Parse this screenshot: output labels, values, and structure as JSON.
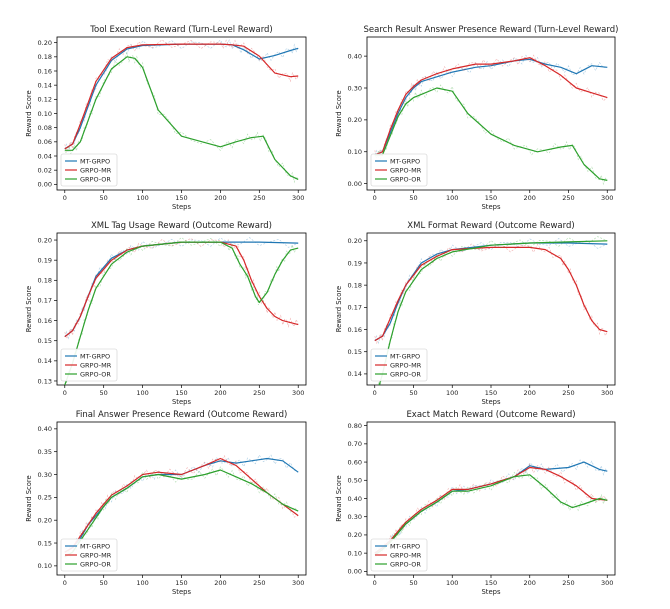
{
  "colors": {
    "MT-GRPO": "#1f77b4",
    "GRPO-MR": "#d62728",
    "GRPO-OR": "#2ca02c"
  },
  "chart_data": [
    {
      "type": "line",
      "title": "Tool Execution Reward (Turn-Level Reward)",
      "xlabel": "Steps",
      "ylabel": "Reward Score",
      "xlim": [
        -10,
        310
      ],
      "ylim": [
        -0.008,
        0.208
      ],
      "xticks": [
        0,
        50,
        100,
        150,
        200,
        250,
        300
      ],
      "yticks": [
        0.0,
        0.02,
        0.04,
        0.06,
        0.08,
        0.1,
        0.12,
        0.14,
        0.16,
        0.18,
        0.2
      ],
      "legend": "lower-left",
      "series": [
        {
          "name": "MT-GRPO",
          "x": [
            0,
            10,
            20,
            30,
            40,
            60,
            80,
            100,
            150,
            200,
            215,
            230,
            250,
            270,
            290,
            300
          ],
          "values": [
            0.05,
            0.057,
            0.08,
            0.11,
            0.14,
            0.175,
            0.191,
            0.196,
            0.198,
            0.198,
            0.197,
            0.19,
            0.177,
            0.182,
            0.189,
            0.192
          ]
        },
        {
          "name": "GRPO-MR",
          "x": [
            0,
            10,
            20,
            30,
            40,
            60,
            80,
            100,
            150,
            200,
            215,
            230,
            250,
            270,
            290,
            300
          ],
          "values": [
            0.05,
            0.057,
            0.085,
            0.115,
            0.145,
            0.178,
            0.193,
            0.197,
            0.198,
            0.198,
            0.197,
            0.195,
            0.181,
            0.157,
            0.152,
            0.153
          ]
        },
        {
          "name": "GRPO-OR",
          "x": [
            0,
            10,
            20,
            30,
            40,
            60,
            80,
            90,
            100,
            120,
            150,
            200,
            220,
            240,
            255,
            270,
            290,
            300
          ],
          "values": [
            0.048,
            0.048,
            0.06,
            0.09,
            0.12,
            0.163,
            0.18,
            0.178,
            0.165,
            0.105,
            0.068,
            0.053,
            0.06,
            0.066,
            0.068,
            0.035,
            0.012,
            0.007
          ]
        }
      ]
    },
    {
      "type": "line",
      "title": "Search Result Answer Presence Reward (Turn-Level Reward)",
      "xlabel": "Steps",
      "ylabel": "Reward Score",
      "xlim": [
        -10,
        310
      ],
      "ylim": [
        -0.02,
        0.46
      ],
      "xticks": [
        0,
        50,
        100,
        150,
        200,
        250,
        300
      ],
      "yticks": [
        0.0,
        0.1,
        0.2,
        0.3,
        0.4
      ],
      "legend": "lower-left",
      "series": [
        {
          "name": "MT-GRPO",
          "x": [
            0,
            10,
            20,
            30,
            40,
            50,
            60,
            80,
            100,
            130,
            150,
            180,
            200,
            220,
            240,
            260,
            280,
            300
          ],
          "values": [
            0.09,
            0.1,
            0.16,
            0.22,
            0.27,
            0.3,
            0.32,
            0.335,
            0.35,
            0.365,
            0.37,
            0.385,
            0.39,
            0.375,
            0.365,
            0.345,
            0.37,
            0.365
          ]
        },
        {
          "name": "GRPO-MR",
          "x": [
            0,
            10,
            20,
            30,
            40,
            50,
            60,
            80,
            100,
            130,
            150,
            180,
            200,
            220,
            240,
            260,
            280,
            300
          ],
          "values": [
            0.09,
            0.1,
            0.17,
            0.23,
            0.28,
            0.305,
            0.325,
            0.345,
            0.36,
            0.375,
            0.375,
            0.385,
            0.395,
            0.37,
            0.34,
            0.3,
            0.285,
            0.27
          ]
        },
        {
          "name": "GRPO-OR",
          "x": [
            0,
            10,
            20,
            30,
            40,
            50,
            60,
            80,
            100,
            120,
            150,
            180,
            210,
            240,
            255,
            270,
            290,
            300
          ],
          "values": [
            0.09,
            0.09,
            0.15,
            0.21,
            0.25,
            0.27,
            0.28,
            0.3,
            0.29,
            0.22,
            0.155,
            0.12,
            0.1,
            0.115,
            0.12,
            0.06,
            0.015,
            0.01
          ]
        }
      ]
    },
    {
      "type": "line",
      "title": "XML Tag Usage Reward (Outcome Reward)",
      "xlabel": "Steps",
      "ylabel": "Reward Score",
      "xlim": [
        -10,
        310
      ],
      "ylim": [
        0.128,
        0.2035
      ],
      "xticks": [
        0,
        50,
        100,
        150,
        200,
        250,
        300
      ],
      "yticks": [
        0.13,
        0.14,
        0.15,
        0.16,
        0.17,
        0.18,
        0.19,
        0.2
      ],
      "legend": "lower-left",
      "series": [
        {
          "name": "MT-GRPO",
          "x": [
            0,
            10,
            20,
            30,
            40,
            60,
            80,
            100,
            150,
            200,
            250,
            300
          ],
          "values": [
            0.152,
            0.155,
            0.162,
            0.172,
            0.182,
            0.191,
            0.195,
            0.197,
            0.199,
            0.199,
            0.199,
            0.1985
          ]
        },
        {
          "name": "GRPO-MR",
          "x": [
            0,
            10,
            20,
            30,
            40,
            60,
            80,
            100,
            150,
            200,
            220,
            230,
            240,
            250,
            260,
            270,
            280,
            290,
            300
          ],
          "values": [
            0.152,
            0.155,
            0.162,
            0.172,
            0.181,
            0.19,
            0.195,
            0.197,
            0.199,
            0.199,
            0.197,
            0.19,
            0.18,
            0.172,
            0.166,
            0.162,
            0.16,
            0.159,
            0.158
          ]
        },
        {
          "name": "GRPO-OR",
          "x": [
            0,
            10,
            20,
            30,
            40,
            60,
            80,
            100,
            150,
            200,
            215,
            225,
            235,
            245,
            250,
            260,
            270,
            280,
            290,
            300
          ],
          "values": [
            0.128,
            0.139,
            0.152,
            0.165,
            0.176,
            0.188,
            0.194,
            0.197,
            0.199,
            0.199,
            0.196,
            0.188,
            0.182,
            0.172,
            0.169,
            0.174,
            0.183,
            0.19,
            0.195,
            0.196
          ]
        }
      ]
    },
    {
      "type": "line",
      "title": "XML Format Reward (Outcome Reward)",
      "xlabel": "Steps",
      "ylabel": "Reward Score",
      "xlim": [
        -10,
        310
      ],
      "ylim": [
        0.135,
        0.2035
      ],
      "xticks": [
        0,
        50,
        100,
        150,
        200,
        250,
        300
      ],
      "yticks": [
        0.14,
        0.15,
        0.16,
        0.17,
        0.18,
        0.19,
        0.2
      ],
      "legend": "lower-left",
      "series": [
        {
          "name": "MT-GRPO",
          "x": [
            0,
            10,
            20,
            30,
            40,
            60,
            80,
            100,
            150,
            200,
            250,
            300
          ],
          "values": [
            0.155,
            0.157,
            0.163,
            0.172,
            0.18,
            0.19,
            0.194,
            0.196,
            0.198,
            0.199,
            0.199,
            0.1985
          ]
        },
        {
          "name": "GRPO-MR",
          "x": [
            0,
            10,
            20,
            30,
            40,
            60,
            80,
            100,
            150,
            200,
            220,
            240,
            250,
            260,
            270,
            280,
            290,
            300
          ],
          "values": [
            0.155,
            0.157,
            0.165,
            0.173,
            0.18,
            0.189,
            0.193,
            0.196,
            0.197,
            0.197,
            0.196,
            0.192,
            0.187,
            0.18,
            0.171,
            0.164,
            0.16,
            0.159
          ]
        },
        {
          "name": "GRPO-OR",
          "x": [
            0,
            10,
            20,
            30,
            40,
            60,
            80,
            100,
            150,
            200,
            250,
            300
          ],
          "values": [
            0.128,
            0.14,
            0.155,
            0.168,
            0.177,
            0.187,
            0.192,
            0.195,
            0.198,
            0.199,
            0.1995,
            0.2
          ]
        }
      ]
    },
    {
      "type": "line",
      "title": "Final Answer Presence Reward (Outcome Reward)",
      "xlabel": "Steps",
      "ylabel": "Reward Score",
      "xlim": [
        -10,
        310
      ],
      "ylim": [
        0.08,
        0.415
      ],
      "xticks": [
        0,
        50,
        100,
        150,
        200,
        250,
        300
      ],
      "yticks": [
        0.1,
        0.15,
        0.2,
        0.25,
        0.3,
        0.35,
        0.4
      ],
      "legend": "lower-left",
      "series": [
        {
          "name": "MT-GRPO",
          "x": [
            0,
            10,
            20,
            30,
            40,
            50,
            60,
            80,
            100,
            120,
            150,
            180,
            200,
            220,
            240,
            260,
            280,
            300
          ],
          "values": [
            0.13,
            0.14,
            0.16,
            0.19,
            0.21,
            0.23,
            0.25,
            0.27,
            0.295,
            0.3,
            0.3,
            0.32,
            0.33,
            0.325,
            0.33,
            0.335,
            0.33,
            0.305
          ]
        },
        {
          "name": "GRPO-MR",
          "x": [
            0,
            10,
            20,
            30,
            40,
            50,
            60,
            80,
            100,
            120,
            150,
            180,
            200,
            220,
            240,
            260,
            280,
            300
          ],
          "values": [
            0.13,
            0.14,
            0.165,
            0.19,
            0.215,
            0.235,
            0.255,
            0.275,
            0.3,
            0.305,
            0.3,
            0.32,
            0.335,
            0.32,
            0.29,
            0.26,
            0.235,
            0.21
          ]
        },
        {
          "name": "GRPO-OR",
          "x": [
            0,
            10,
            20,
            30,
            40,
            50,
            60,
            80,
            100,
            120,
            150,
            180,
            200,
            220,
            240,
            260,
            280,
            300
          ],
          "values": [
            0.12,
            0.13,
            0.155,
            0.18,
            0.205,
            0.23,
            0.25,
            0.27,
            0.295,
            0.3,
            0.29,
            0.3,
            0.31,
            0.295,
            0.28,
            0.26,
            0.235,
            0.22
          ]
        }
      ]
    },
    {
      "type": "line",
      "title": "Exact Match Reward (Outcome Reward)",
      "xlabel": "Steps",
      "ylabel": "Reward Score",
      "xlim": [
        -10,
        310
      ],
      "ylim": [
        -0.02,
        0.82
      ],
      "xticks": [
        0,
        50,
        100,
        150,
        200,
        250,
        300
      ],
      "yticks": [
        0.0,
        0.1,
        0.2,
        0.3,
        0.4,
        0.5,
        0.6,
        0.7,
        0.8
      ],
      "legend": "lower-left",
      "series": [
        {
          "name": "MT-GRPO",
          "x": [
            0,
            10,
            20,
            30,
            40,
            60,
            80,
            100,
            120,
            150,
            180,
            200,
            220,
            250,
            270,
            290,
            300
          ],
          "values": [
            0.1,
            0.13,
            0.17,
            0.21,
            0.26,
            0.33,
            0.38,
            0.44,
            0.45,
            0.48,
            0.52,
            0.58,
            0.56,
            0.57,
            0.6,
            0.56,
            0.55
          ]
        },
        {
          "name": "GRPO-MR",
          "x": [
            0,
            10,
            20,
            30,
            40,
            60,
            80,
            100,
            120,
            150,
            180,
            200,
            220,
            240,
            260,
            280,
            300
          ],
          "values": [
            0.1,
            0.13,
            0.17,
            0.22,
            0.27,
            0.34,
            0.39,
            0.45,
            0.45,
            0.48,
            0.52,
            0.57,
            0.56,
            0.52,
            0.47,
            0.4,
            0.39
          ]
        },
        {
          "name": "GRPO-OR",
          "x": [
            0,
            10,
            20,
            30,
            40,
            60,
            80,
            100,
            120,
            150,
            180,
            200,
            220,
            240,
            255,
            270,
            290,
            300
          ],
          "values": [
            0.09,
            0.12,
            0.16,
            0.21,
            0.26,
            0.33,
            0.38,
            0.44,
            0.44,
            0.47,
            0.52,
            0.53,
            0.46,
            0.38,
            0.35,
            0.37,
            0.4,
            0.39
          ]
        }
      ]
    }
  ]
}
